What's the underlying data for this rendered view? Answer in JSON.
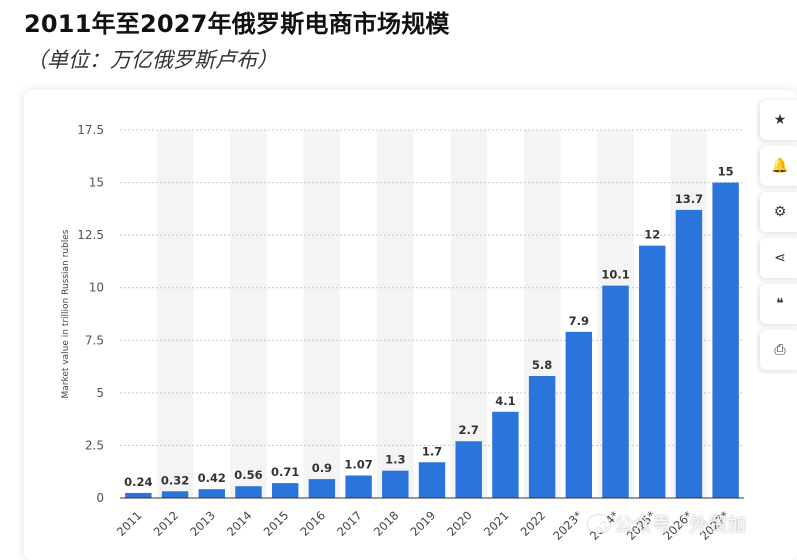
{
  "header": {
    "title": "2011年至2027年俄罗斯电商市场规模",
    "subtitle": "（单位：万亿俄罗斯卢布）"
  },
  "toolbar": {
    "items": [
      {
        "name": "star-icon",
        "glyph": "★"
      },
      {
        "name": "bell-icon",
        "glyph": "🔔"
      },
      {
        "name": "gear-icon",
        "glyph": "⚙"
      },
      {
        "name": "share-icon",
        "glyph": "⋖"
      },
      {
        "name": "quote-icon",
        "glyph": "❝"
      },
      {
        "name": "print-icon",
        "glyph": "⎙"
      }
    ]
  },
  "watermark": {
    "text": "公众号 · 外贸加"
  },
  "colors": {
    "bar": "#2a74dc",
    "grid": "#c8c8c8",
    "band": "#f4f4f4",
    "axis": "#555555"
  },
  "chart_data": {
    "type": "bar",
    "title": "",
    "xlabel": "",
    "ylabel": "Market value in trillion Russian rubles",
    "ylim": [
      0,
      17.5
    ],
    "yticks": [
      0,
      2.5,
      5,
      7.5,
      10,
      12.5,
      15,
      17.5
    ],
    "ytick_labels": [
      "0",
      "2.5",
      "5",
      "7.5",
      "10",
      "12.5",
      "15",
      "17.5"
    ],
    "grid": true,
    "categories": [
      "2011",
      "2012",
      "2013",
      "2014",
      "2015",
      "2016",
      "2017",
      "2018",
      "2019",
      "2020",
      "2021",
      "2022",
      "2023*",
      "2024*",
      "2025*",
      "2026*",
      "2027*"
    ],
    "values": [
      0.24,
      0.32,
      0.42,
      0.56,
      0.71,
      0.9,
      1.07,
      1.3,
      1.7,
      2.7,
      4.1,
      5.8,
      7.9,
      10.1,
      12,
      13.7,
      15
    ],
    "value_labels": [
      "0.24",
      "0.32",
      "0.42",
      "0.56",
      "0.71",
      "0.9",
      "1.07",
      "1.3",
      "1.7",
      "2.7",
      "4.1",
      "5.8",
      "7.9",
      "10.1",
      "12",
      "13.7",
      "15"
    ]
  }
}
